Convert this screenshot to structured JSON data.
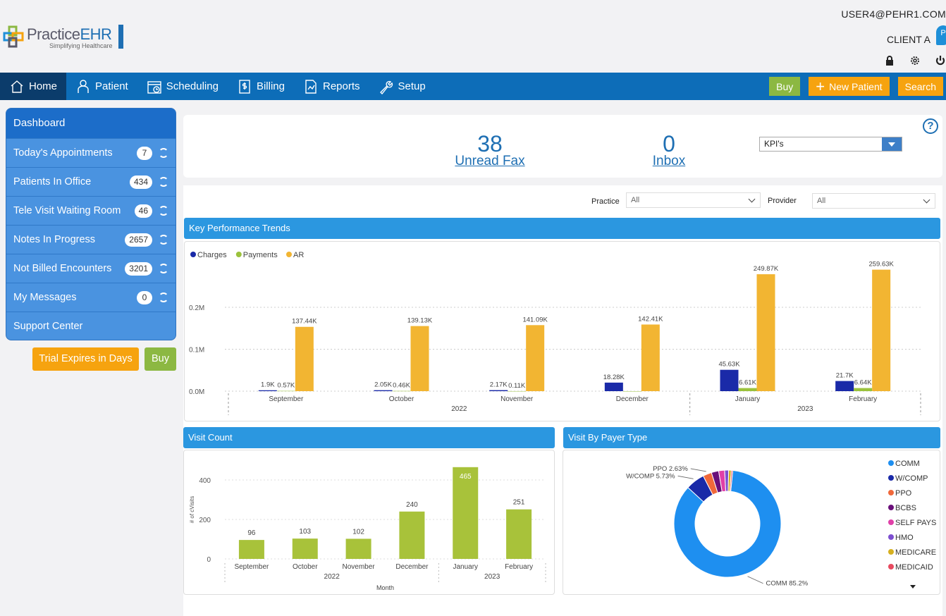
{
  "header": {
    "logo_text_a": "Practice",
    "logo_text_b": "EHR",
    "logo_tagline": "Simplifying Healthcare",
    "user_email": "USER4@PEHR1.COM",
    "client_name": "CLIENT A",
    "client_badge": "P"
  },
  "nav": {
    "items": [
      {
        "label": "Home",
        "icon": "home-icon"
      },
      {
        "label": "Patient",
        "icon": "person-icon"
      },
      {
        "label": "Scheduling",
        "icon": "calendar-icon"
      },
      {
        "label": "Billing",
        "icon": "dollar-icon"
      },
      {
        "label": "Reports",
        "icon": "report-icon"
      },
      {
        "label": "Setup",
        "icon": "wrench-icon"
      }
    ],
    "buy_label": "Buy",
    "new_patient_label": "New Patient",
    "search_label": "Search"
  },
  "sidebar": {
    "title": "Dashboard",
    "items": [
      {
        "label": "Today's Appointments",
        "count": "7"
      },
      {
        "label": "Patients In Office",
        "count": "434"
      },
      {
        "label": "Tele Visit Waiting Room",
        "count": "46"
      },
      {
        "label": "Notes In Progress",
        "count": "2657"
      },
      {
        "label": "Not Billed Encounters",
        "count": "3201"
      },
      {
        "label": "My Messages",
        "count": "0"
      },
      {
        "label": "Support Center",
        "count": ""
      }
    ],
    "trial_label": "Trial Expires in Days",
    "trial_buy_label": "Buy"
  },
  "kpi": {
    "fax_count": "38",
    "fax_label": "Unread Fax",
    "inbox_count": "0",
    "inbox_label": "Inbox",
    "select_value": "KPI's",
    "help": "?"
  },
  "filters": {
    "practice_label": "Practice",
    "practice_value": "All",
    "provider_label": "Provider",
    "provider_value": "All"
  },
  "colors": {
    "charges": "#1a2aa8",
    "payments": "#9bc23c",
    "ar": "#f2b532",
    "visit_bar": "#a8c23a"
  },
  "chart_data": [
    {
      "type": "bar",
      "title": "Key Performance Trends",
      "categories": [
        "September",
        "October",
        "November",
        "December",
        "January",
        "February"
      ],
      "year_groups": [
        {
          "label": "2022",
          "span": 4
        },
        {
          "label": "2023",
          "span": 2
        }
      ],
      "series": [
        {
          "name": "Charges",
          "values": [
            1900,
            2050,
            2170,
            18280,
            45630,
            21700
          ],
          "labels": [
            "1.9K",
            "2.05K",
            "2.17K",
            "18.28K",
            "45.63K",
            "21.7K"
          ]
        },
        {
          "name": "Payments",
          "values": [
            570,
            460,
            110,
            0,
            6610,
            6640
          ],
          "labels": [
            "0.57K",
            "0.46K",
            "0.11K",
            "",
            "6.61K",
            "6.64K"
          ]
        },
        {
          "name": "AR",
          "values": [
            137440,
            139130,
            141090,
            142410,
            249870,
            259630
          ],
          "labels": [
            "137.44K",
            "139.13K",
            "141.09K",
            "142.41K",
            "249.87K",
            "259.63K"
          ]
        }
      ],
      "yticks": [
        "0.0M",
        "0.1M",
        "0.2M"
      ],
      "ylim": [
        0,
        300000
      ],
      "legend": "top-left"
    },
    {
      "type": "bar",
      "title": "Visit Count",
      "categories": [
        "September",
        "October",
        "November",
        "December",
        "January",
        "February"
      ],
      "year_groups": [
        {
          "label": "2022",
          "span": 4
        },
        {
          "label": "2023",
          "span": 2
        }
      ],
      "values": [
        96,
        103,
        102,
        240,
        465,
        251
      ],
      "xlabel": "Month",
      "ylabel": "# of cVisits",
      "yticks": [
        "0",
        "200",
        "400"
      ],
      "ylim": [
        0,
        470
      ]
    },
    {
      "type": "pie",
      "title": "Visit By Payer Type",
      "slices": [
        {
          "name": "COMM",
          "value": 85.2,
          "color": "#1e8ff0",
          "label": "COMM 85.2%"
        },
        {
          "name": "W/COMP",
          "value": 5.73,
          "color": "#1a2aa8",
          "label": "W/COMP 5.73%"
        },
        {
          "name": "PPO",
          "value": 2.63,
          "color": "#f0683a",
          "label": "PPO 2.63%"
        },
        {
          "name": "BCBS",
          "value": 2.2,
          "color": "#6a0f7a",
          "label": ""
        },
        {
          "name": "SELF PAYS",
          "value": 1.8,
          "color": "#e040a8",
          "label": ""
        },
        {
          "name": "HMO",
          "value": 1.2,
          "color": "#7d4fd0",
          "label": ""
        },
        {
          "name": "MEDICARE",
          "value": 0.8,
          "color": "#d6b020",
          "label": ""
        },
        {
          "name": "MEDICAID",
          "value": 0.44,
          "color": "#e84a5f",
          "label": ""
        }
      ],
      "legend": "right"
    }
  ]
}
